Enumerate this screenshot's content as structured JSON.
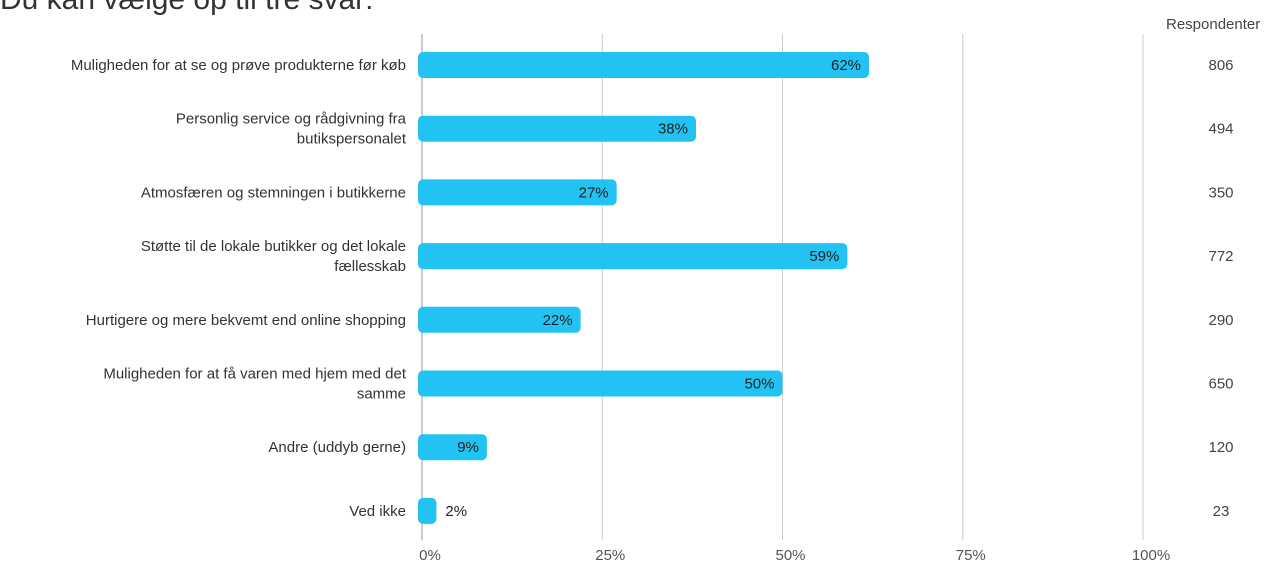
{
  "page": {
    "subtitle": "Du kan vælge op til tre svar:",
    "respondents_header": "Respondenter"
  },
  "chart_data": {
    "type": "bar",
    "orientation": "horizontal",
    "categories": [
      [
        "Muligheden for at se og prøve produkterne før køb"
      ],
      [
        "Personlig service og rådgivning fra",
        "butikspersonalet"
      ],
      [
        "Atmosfæren og stemningen i butikkerne"
      ],
      [
        "Støtte til de lokale butikker og det lokale",
        "fællesskab"
      ],
      [
        "Hurtigere og mere bekvemt end online shopping"
      ],
      [
        "Muligheden for at få varen med hjem med det",
        "samme"
      ],
      [
        "Andre (uddyb gerne)"
      ],
      [
        "Ved ikke"
      ]
    ],
    "values": [
      62,
      38,
      27,
      59,
      22,
      50,
      9,
      2
    ],
    "value_labels": [
      "62%",
      "38%",
      "27%",
      "59%",
      "22%",
      "50%",
      "9%",
      "2%"
    ],
    "respondents": [
      806,
      494,
      350,
      772,
      290,
      650,
      120,
      23
    ],
    "xlim": [
      0,
      100
    ],
    "xticks": [
      "0%",
      "25%",
      "50%",
      "75%",
      "100%"
    ],
    "grid": true,
    "bar_color": "#22c3f3",
    "grid_color": "#cccccc"
  }
}
